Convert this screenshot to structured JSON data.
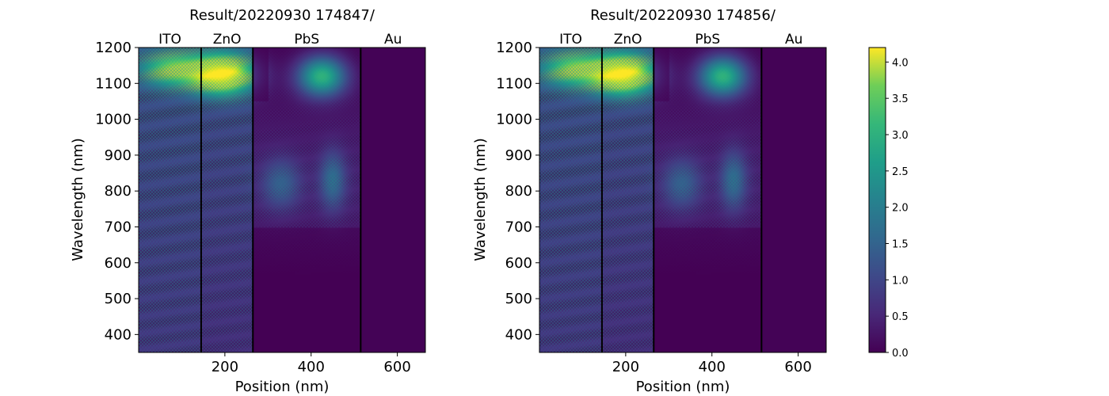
{
  "chart_data": [
    {
      "type": "heatmap",
      "title": "Result/20220930 174847/",
      "xlabel": "Position (nm)",
      "ylabel": "Wavelength (nm)",
      "xlim": [
        0,
        665
      ],
      "ylim": [
        350,
        1200
      ],
      "xticks": [
        200,
        400,
        600
      ],
      "yticks": [
        400,
        500,
        600,
        700,
        800,
        900,
        1000,
        1100,
        1200
      ],
      "layers": [
        {
          "name": "ITO",
          "start": 0,
          "end": 145
        },
        {
          "name": "ZnO",
          "start": 145,
          "end": 265
        },
        {
          "name": "PbS",
          "start": 265,
          "end": 515
        },
        {
          "name": "Au",
          "start": 515,
          "end": 665
        }
      ],
      "layer_boundaries": [
        145,
        265,
        515
      ],
      "peak_value": 4.2,
      "peak_location": [
        195,
        1125
      ]
    },
    {
      "type": "heatmap",
      "title": "Result/20220930 174856/",
      "xlabel": "Position (nm)",
      "ylabel": "Wavelength (nm)",
      "xlim": [
        0,
        665
      ],
      "ylim": [
        350,
        1200
      ],
      "xticks": [
        200,
        400,
        600
      ],
      "yticks": [
        400,
        500,
        600,
        700,
        800,
        900,
        1000,
        1100,
        1200
      ],
      "layers": [
        {
          "name": "ITO",
          "start": 0,
          "end": 145
        },
        {
          "name": "ZnO",
          "start": 145,
          "end": 265
        },
        {
          "name": "PbS",
          "start": 265,
          "end": 515
        },
        {
          "name": "Au",
          "start": 515,
          "end": 665
        }
      ],
      "layer_boundaries": [
        145,
        265,
        515
      ],
      "peak_value": 4.2,
      "peak_location": [
        195,
        1125
      ]
    }
  ],
  "colorbar": {
    "colormap": "viridis",
    "range": [
      0,
      4.2
    ],
    "ticks": [
      "0.0",
      "0.5",
      "1.0",
      "1.5",
      "2.0",
      "2.5",
      "3.0",
      "3.5",
      "4.0"
    ],
    "tick_values": [
      0,
      0.5,
      1.0,
      1.5,
      2.0,
      2.5,
      3.0,
      3.5,
      4.0
    ]
  },
  "colors": {
    "viridis_low": "#440154",
    "viridis_mid": "#21918c",
    "viridis_high": "#fde725",
    "boundary_line": "#000000"
  }
}
